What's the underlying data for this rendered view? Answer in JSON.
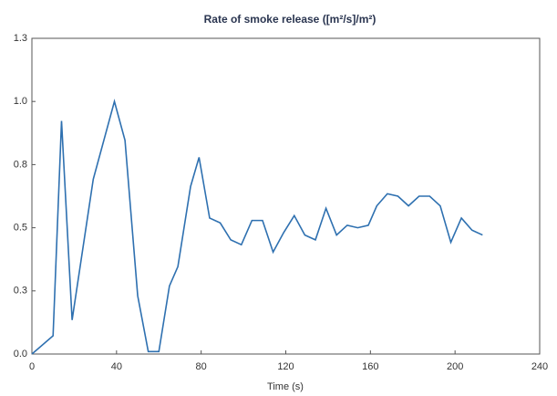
{
  "chart_data": {
    "type": "line",
    "title": "Rate of smoke release ([m²/s]/m²)",
    "x_label": "Time (s)",
    "series": [
      {
        "color": "#2e70b0",
        "x": [
          0,
          10,
          14,
          19,
          29,
          39,
          44,
          50,
          55,
          60,
          65,
          69,
          75,
          79,
          84,
          89,
          94,
          99,
          104,
          109,
          114,
          119,
          124,
          129,
          134,
          139,
          144,
          149,
          154,
          159,
          163,
          168,
          173,
          178,
          183,
          188,
          193,
          198,
          203,
          208,
          213
        ],
        "values": [
          0,
          0.075,
          0.96,
          0.14,
          0.72,
          1.04,
          0.88,
          0.24,
          0.01,
          0.01,
          0.28,
          0.36,
          0.69,
          0.81,
          0.56,
          0.54,
          0.47,
          0.45,
          0.55,
          0.55,
          0.42,
          0.5,
          0.57,
          0.49,
          0.47,
          0.6,
          0.49,
          0.53,
          0.52,
          0.53,
          0.61,
          0.66,
          0.65,
          0.61,
          0.65,
          0.65,
          0.61,
          0.46,
          0.56,
          0.51,
          0.49
        ]
      }
    ],
    "xlim": [
      0,
      240
    ],
    "xticks": [
      0,
      40,
      80,
      120,
      160,
      200,
      240
    ],
    "ylim": [
      0,
      1.3
    ],
    "yticks": [
      {
        "value": 0,
        "label": "0.0"
      },
      {
        "value": 0.26,
        "label": "0.3"
      },
      {
        "value": 0.52,
        "label": "0.5"
      },
      {
        "value": 0.78,
        "label": "0.8"
      },
      {
        "value": 1.04,
        "label": "1.0"
      },
      1.3
    ],
    "grid": false
  }
}
